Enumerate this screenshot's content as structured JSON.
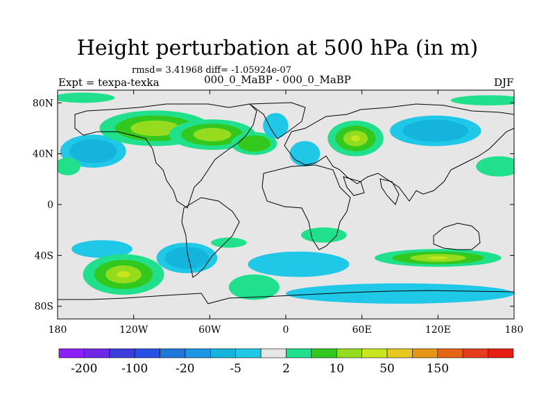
{
  "chart_data": {
    "type": "heatmap",
    "title": "Height perturbation at 500 hPa (in m)",
    "stats_text": "rmsd= 3.41968 diff= -1.05924e-07",
    "left_label": "Expt = texpa-texka",
    "center_label": "000_0_MaBP - 000_0_MaBP",
    "right_label": "DJF",
    "x_ticks": [
      {
        "value": -180,
        "label": "180"
      },
      {
        "value": -120,
        "label": "120W"
      },
      {
        "value": -60,
        "label": "60W"
      },
      {
        "value": 0,
        "label": "0"
      },
      {
        "value": 60,
        "label": "60E"
      },
      {
        "value": 120,
        "label": "120E"
      },
      {
        "value": 180,
        "label": "180"
      }
    ],
    "y_ticks": [
      {
        "value": 80,
        "label": "80N"
      },
      {
        "value": 40,
        "label": "40N"
      },
      {
        "value": 0,
        "label": "0"
      },
      {
        "value": -40,
        "label": "40S"
      },
      {
        "value": -80,
        "label": "80S"
      }
    ],
    "xlim": [
      -180,
      180
    ],
    "ylim": [
      -90,
      90
    ],
    "colorbar": {
      "colors": [
        "#8c1efa",
        "#6e28e6",
        "#3c3cdc",
        "#2850e6",
        "#1e78dc",
        "#1e96e6",
        "#14b4dc",
        "#1ec8e6",
        "#e6e6e6",
        "#20e08c",
        "#32c81e",
        "#96dc1e",
        "#c8e61e",
        "#e6c81e",
        "#e69614",
        "#e66414",
        "#e63c1e",
        "#e61e14"
      ],
      "labels": [
        {
          "boundary": 1,
          "text": "-200"
        },
        {
          "boundary": 3,
          "text": "-100"
        },
        {
          "boundary": 5,
          "text": "-20"
        },
        {
          "boundary": 7,
          "text": "-5"
        },
        {
          "boundary": 9,
          "text": "2"
        },
        {
          "boundary": 11,
          "text": "10"
        },
        {
          "boundary": 13,
          "text": "50"
        },
        {
          "boundary": 15,
          "text": "150"
        }
      ]
    },
    "anomalies": [
      {
        "lon": -152,
        "lat": 42,
        "rlon": 26,
        "rlat": 13,
        "amp": -5
      },
      {
        "lon": -103,
        "lat": 60,
        "rlon": 44,
        "rlat": 14,
        "amp": 8
      },
      {
        "lon": -58,
        "lat": 55,
        "rlon": 34,
        "rlat": 12,
        "amp": 10
      },
      {
        "lon": -25,
        "lat": 48,
        "rlon": 18,
        "rlat": 9,
        "amp": 6
      },
      {
        "lon": -8,
        "lat": 62,
        "rlon": 10,
        "rlat": 10,
        "amp": -4
      },
      {
        "lon": 15,
        "lat": 40,
        "rlon": 12,
        "rlat": 10,
        "amp": -4
      },
      {
        "lon": 55,
        "lat": 52,
        "rlon": 22,
        "rlat": 14,
        "amp": 12
      },
      {
        "lon": 118,
        "lat": 58,
        "rlon": 36,
        "rlat": 12,
        "amp": -6
      },
      {
        "lon": 168,
        "lat": 30,
        "rlon": 18,
        "rlat": 8,
        "amp": 3
      },
      {
        "lon": -172,
        "lat": 30,
        "rlon": 10,
        "rlat": 7,
        "amp": 3
      },
      {
        "lon": 160,
        "lat": 82,
        "rlon": 30,
        "rlat": 4,
        "amp": 3
      },
      {
        "lon": -160,
        "lat": 84,
        "rlon": 25,
        "rlat": 4,
        "amp": 3
      },
      {
        "lon": 30,
        "lat": -24,
        "rlon": 18,
        "rlat": 6,
        "amp": 3
      },
      {
        "lon": -145,
        "lat": -35,
        "rlon": 24,
        "rlat": 7,
        "amp": -4
      },
      {
        "lon": -128,
        "lat": -55,
        "rlon": 32,
        "rlat": 16,
        "amp": 15
      },
      {
        "lon": -78,
        "lat": -42,
        "rlon": 24,
        "rlat": 12,
        "amp": -5
      },
      {
        "lon": -45,
        "lat": -30,
        "rlon": 14,
        "rlat": 4,
        "amp": 3
      },
      {
        "lon": -25,
        "lat": -65,
        "rlon": 20,
        "rlat": 10,
        "amp": 3
      },
      {
        "lon": 10,
        "lat": -47,
        "rlon": 40,
        "rlat": 10,
        "amp": -4
      },
      {
        "lon": 120,
        "lat": -42,
        "rlon": 50,
        "rlat": 7,
        "amp": 12
      },
      {
        "lon": 90,
        "lat": -70,
        "rlon": 90,
        "rlat": 8,
        "amp": -4
      }
    ]
  }
}
